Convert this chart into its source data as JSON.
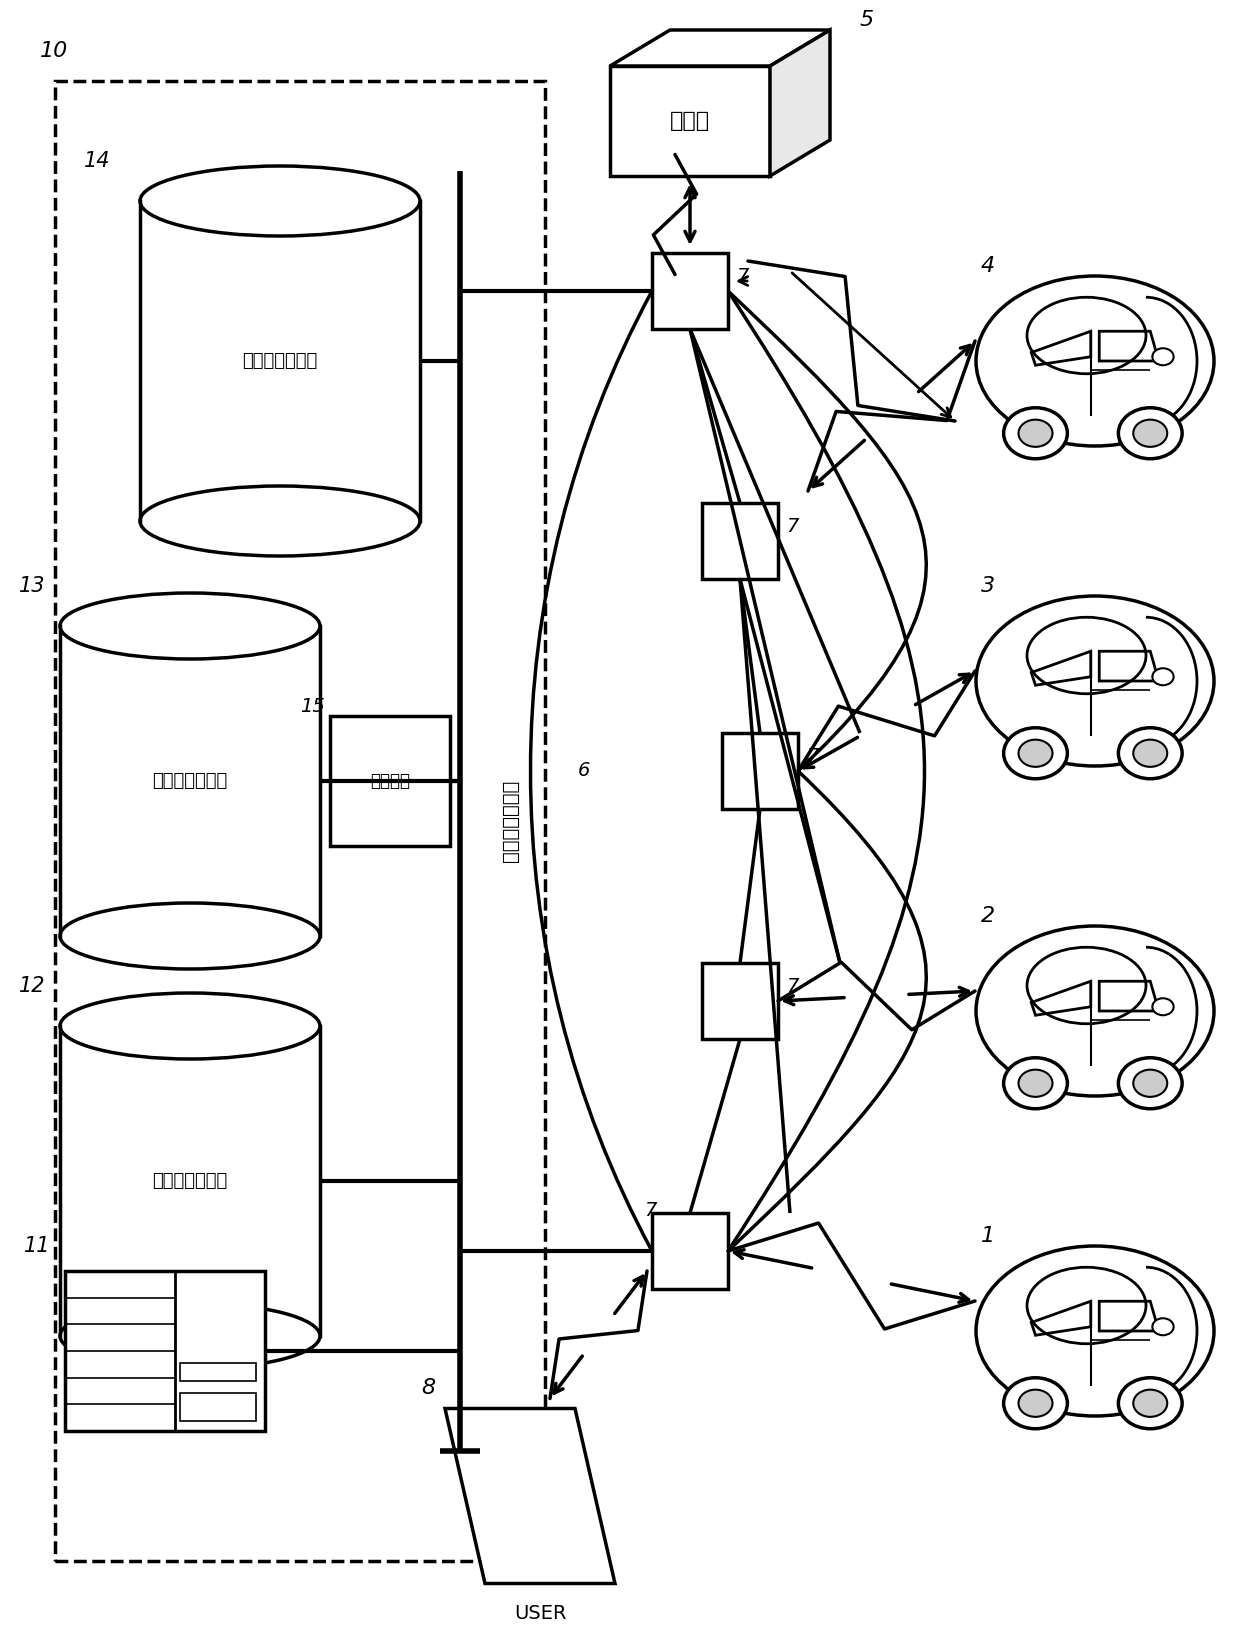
{
  "bg_color": "#ffffff",
  "line_color": "#000000",
  "server_label": "充电预约服务器",
  "db14_label": "充电信息数据库",
  "db13_label": "车辆信息数据库",
  "db12_label": "地图信息数据库",
  "comm_label": "通信装置",
  "station_label": "充电站",
  "user_label": "USER",
  "figsize": [
    12.4,
    16.41
  ],
  "dpi": 100
}
